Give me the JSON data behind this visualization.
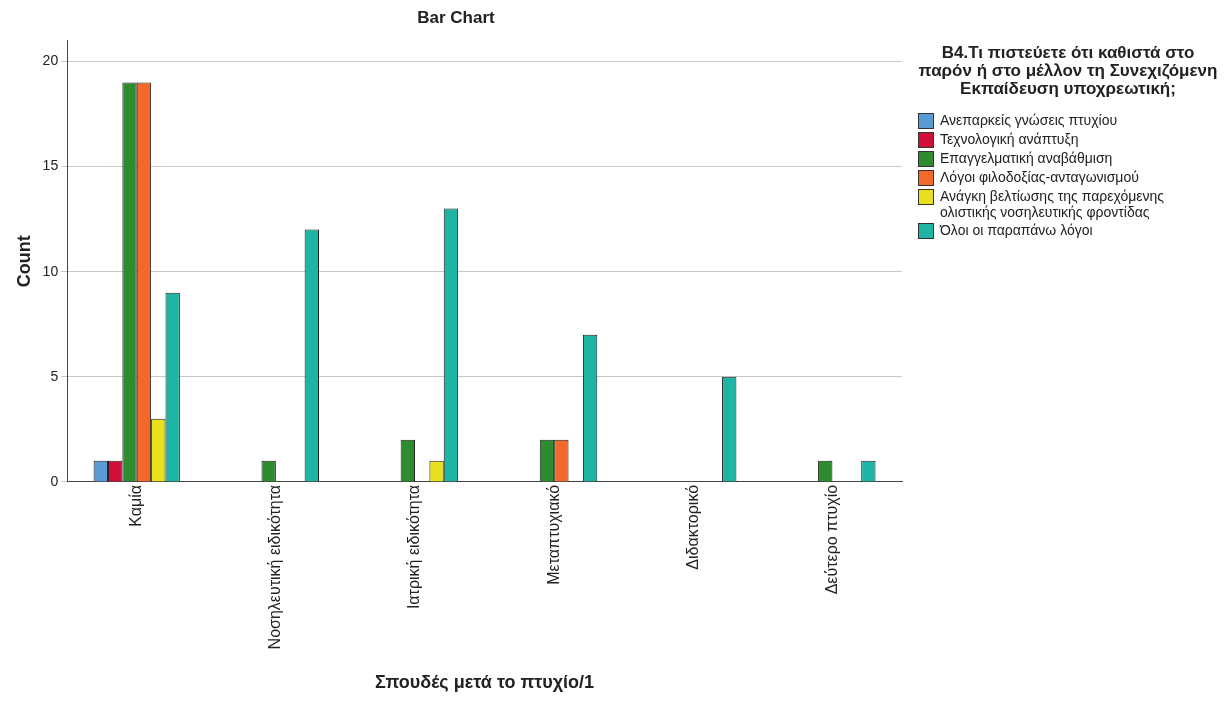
{
  "chart_data": {
    "type": "bar",
    "title": "Bar Chart",
    "xlabel": "Σπουδές μετά το πτυχίο/1",
    "ylabel": "Count",
    "legend_title": "Β4.Τι πιστεύετε ότι καθιστά στο παρόν ή στο μέλλον τη Συνεχιζόμενη Εκπαίδευση υποχρεωτική;",
    "categories": [
      "Καμία",
      "Νοσηλευτική ειδικότητα",
      "Ιατρική ειδικότητα",
      "Μεταπτυχιακό",
      "Διδακτορικό",
      "Δεύτερο πτυχίο"
    ],
    "series": [
      {
        "name": "Ανεπαρκείς γνώσεις πτυχίου",
        "color": "#5b9bd5",
        "values": [
          1,
          null,
          null,
          null,
          null,
          null
        ]
      },
      {
        "name": "Τεχνολογική ανάπτυξη",
        "color": "#d0103a",
        "values": [
          1,
          null,
          null,
          null,
          null,
          null
        ]
      },
      {
        "name": "Επαγγελματική αναβάθμιση",
        "color": "#2e8b2e",
        "values": [
          19,
          1,
          2,
          2,
          null,
          1
        ]
      },
      {
        "name": "Λόγοι φιλοδοξίας-ανταγωνισμού",
        "color": "#f2692b",
        "values": [
          19,
          null,
          null,
          2,
          null,
          null
        ]
      },
      {
        "name": "Ανάγκη βελτίωσης της παρεχόμενης ολιστικής νοσηλευτικής φροντίδας",
        "color": "#e8e01c",
        "values": [
          3,
          null,
          1,
          null,
          null,
          null
        ]
      },
      {
        "name": "Όλοι οι παραπάνω λόγοι",
        "color": "#1fb5a5",
        "values": [
          9,
          12,
          13,
          7,
          5,
          1
        ]
      }
    ],
    "ylim": [
      0,
      21
    ],
    "yticks": [
      0,
      5,
      10,
      15,
      20
    ],
    "grid": "y",
    "legend": "right"
  }
}
